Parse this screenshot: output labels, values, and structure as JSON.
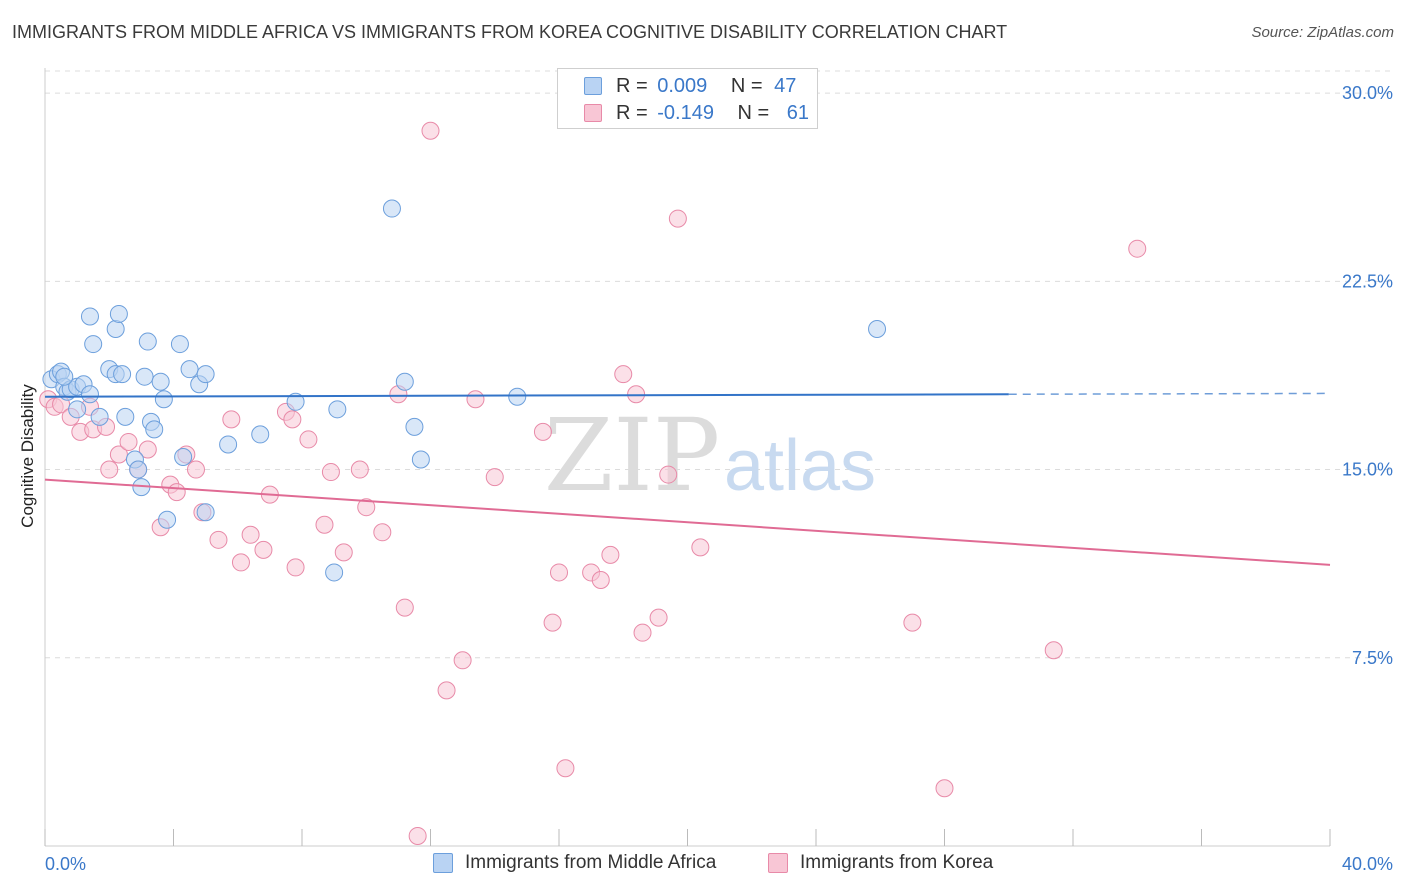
{
  "title": "IMMIGRANTS FROM MIDDLE AFRICA VS IMMIGRANTS FROM KOREA COGNITIVE DISABILITY CORRELATION CHART",
  "source": "Source: ZipAtlas.com",
  "watermark": {
    "zip": "ZIP",
    "atlas": "atlas"
  },
  "legend": {
    "series1": {
      "r_label": "R =",
      "r_value": "0.009",
      "n_label": "N =",
      "n_value": "47"
    },
    "series2": {
      "r_label": "R =",
      "r_value": "-0.149",
      "n_label": "N =",
      "n_value": "61"
    }
  },
  "colors": {
    "blue_fill": "#b9d3f3",
    "blue_stroke": "#6c9fdc",
    "blue_line": "#3374c8",
    "pink_fill": "#f8c6d5",
    "pink_stroke": "#e88aa8",
    "pink_line": "#e06b94",
    "tick_label": "#3a78c9",
    "grid": "#dcdcdc"
  },
  "chart_data": {
    "type": "scatter",
    "xlabel": "",
    "ylabel": "Cognitive Disability",
    "xlim": [
      0,
      40
    ],
    "ylim": [
      0,
      31
    ],
    "x_tick_labels": [
      "0.0%",
      "40.0%"
    ],
    "y_ticks": [
      7.5,
      15.0,
      22.5,
      30.0
    ],
    "y_tick_labels": [
      "7.5%",
      "15.0%",
      "22.5%",
      "30.0%"
    ],
    "grid": "horizontal dashed",
    "legend_position": "top-center",
    "series": [
      {
        "name": "Immigrants from Middle Africa",
        "trend": {
          "x": [
            0,
            30
          ],
          "y": [
            17.9,
            18.0
          ],
          "dashed_to": 40
        },
        "points": [
          [
            0.2,
            18.6
          ],
          [
            0.4,
            18.8
          ],
          [
            0.5,
            18.9
          ],
          [
            0.6,
            18.3
          ],
          [
            0.7,
            18.1
          ],
          [
            0.8,
            18.2
          ],
          [
            1.0,
            18.3
          ],
          [
            1.0,
            17.4
          ],
          [
            1.2,
            18.4
          ],
          [
            1.4,
            18.0
          ],
          [
            1.5,
            20.0
          ],
          [
            1.7,
            17.1
          ],
          [
            2.0,
            19.0
          ],
          [
            2.2,
            18.8
          ],
          [
            2.5,
            17.1
          ],
          [
            2.8,
            15.4
          ],
          [
            2.9,
            15.0
          ],
          [
            3.0,
            14.3
          ],
          [
            3.1,
            18.7
          ],
          [
            3.2,
            20.1
          ],
          [
            3.3,
            16.9
          ],
          [
            3.4,
            16.6
          ],
          [
            3.6,
            18.5
          ],
          [
            3.7,
            17.8
          ],
          [
            3.8,
            13.0
          ],
          [
            4.2,
            20.0
          ],
          [
            4.3,
            15.5
          ],
          [
            4.5,
            19.0
          ],
          [
            4.8,
            18.4
          ],
          [
            5.0,
            18.8
          ],
          [
            5.7,
            16.0
          ],
          [
            6.7,
            16.4
          ],
          [
            7.8,
            17.7
          ],
          [
            9.1,
            17.4
          ],
          [
            9.0,
            10.9
          ],
          [
            10.8,
            25.4
          ],
          [
            11.2,
            18.5
          ],
          [
            11.5,
            16.7
          ],
          [
            11.7,
            15.4
          ],
          [
            14.7,
            17.9
          ],
          [
            25.9,
            20.6
          ],
          [
            2.2,
            20.6
          ],
          [
            2.3,
            21.2
          ],
          [
            5.0,
            13.3
          ],
          [
            2.4,
            18.8
          ],
          [
            1.4,
            21.1
          ],
          [
            0.6,
            18.7
          ]
        ]
      },
      {
        "name": "Immigrants from Korea",
        "trend": {
          "x": [
            0,
            40
          ],
          "y": [
            14.6,
            11.2
          ]
        },
        "points": [
          [
            0.1,
            17.8
          ],
          [
            0.3,
            17.5
          ],
          [
            0.5,
            17.6
          ],
          [
            0.8,
            17.1
          ],
          [
            1.1,
            16.5
          ],
          [
            1.4,
            17.5
          ],
          [
            1.5,
            16.6
          ],
          [
            1.9,
            16.7
          ],
          [
            2.0,
            15.0
          ],
          [
            2.3,
            15.6
          ],
          [
            2.6,
            16.1
          ],
          [
            2.9,
            15.0
          ],
          [
            3.2,
            15.8
          ],
          [
            3.6,
            12.7
          ],
          [
            3.9,
            14.4
          ],
          [
            4.1,
            14.1
          ],
          [
            4.4,
            15.6
          ],
          [
            4.7,
            15.0
          ],
          [
            4.9,
            13.3
          ],
          [
            5.4,
            12.2
          ],
          [
            5.8,
            17.0
          ],
          [
            6.1,
            11.3
          ],
          [
            6.4,
            12.4
          ],
          [
            6.8,
            11.8
          ],
          [
            7.0,
            14.0
          ],
          [
            7.5,
            17.3
          ],
          [
            7.7,
            17.0
          ],
          [
            7.8,
            11.1
          ],
          [
            8.2,
            16.2
          ],
          [
            8.7,
            12.8
          ],
          [
            8.9,
            14.9
          ],
          [
            9.3,
            11.7
          ],
          [
            9.8,
            15.0
          ],
          [
            10.0,
            13.5
          ],
          [
            10.5,
            12.5
          ],
          [
            11.0,
            18.0
          ],
          [
            11.2,
            9.5
          ],
          [
            11.6,
            0.4
          ],
          [
            12.0,
            28.5
          ],
          [
            12.5,
            6.2
          ],
          [
            13.0,
            7.4
          ],
          [
            13.4,
            17.8
          ],
          [
            14.0,
            14.7
          ],
          [
            15.5,
            16.5
          ],
          [
            15.8,
            8.9
          ],
          [
            16.0,
            10.9
          ],
          [
            16.2,
            3.1
          ],
          [
            17.0,
            10.9
          ],
          [
            17.3,
            10.6
          ],
          [
            17.6,
            11.6
          ],
          [
            18.0,
            18.8
          ],
          [
            18.4,
            18.0
          ],
          [
            18.6,
            8.5
          ],
          [
            19.1,
            9.1
          ],
          [
            19.4,
            14.8
          ],
          [
            19.7,
            25.0
          ],
          [
            20.4,
            11.9
          ],
          [
            27.0,
            8.9
          ],
          [
            28.0,
            2.3
          ],
          [
            31.4,
            7.8
          ],
          [
            34.0,
            23.8
          ]
        ]
      }
    ]
  },
  "bottom_legend": {
    "item1": "Immigrants from Middle Africa",
    "item2": "Immigrants from Korea"
  }
}
